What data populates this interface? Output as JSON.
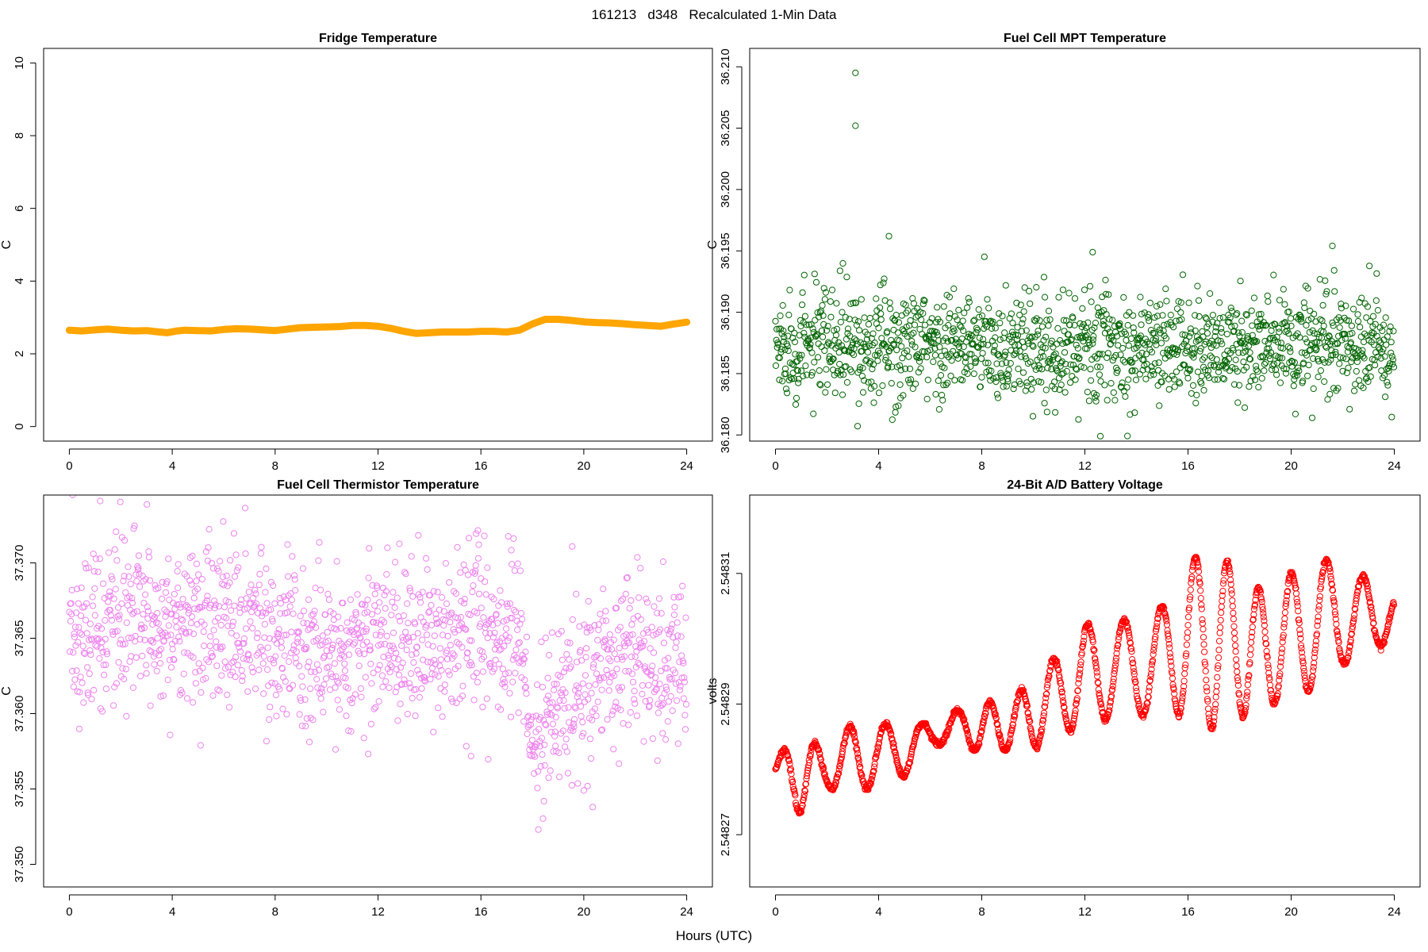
{
  "figure": {
    "title": "161213   d348   Recalculated 1-Min Data",
    "xlabel": "Hours (UTC)"
  },
  "chart_data": [
    {
      "id": "fridge",
      "type": "line",
      "title": "Fridge Temperature",
      "xlabel": "Hours (UTC)",
      "ylabel": "C",
      "color": "#FFA500",
      "xlim": [
        -1,
        25
      ],
      "ylim": [
        -0.4,
        10.4
      ],
      "xticks": [
        0,
        4,
        8,
        12,
        16,
        20,
        24
      ],
      "yticks": [
        0,
        2,
        4,
        6,
        8,
        10
      ],
      "ytick_labels": [
        "0",
        "2",
        "4",
        "6",
        "8",
        "10"
      ],
      "series": [
        {
          "name": "Fridge Temperature",
          "x": [
            0,
            0.5,
            1,
            1.5,
            2,
            2.5,
            3,
            3.5,
            3.8,
            4.2,
            4.5,
            5,
            5.5,
            6,
            6.5,
            7,
            7.5,
            8,
            8.5,
            9,
            9.5,
            10,
            10.5,
            11,
            11.5,
            12,
            12.5,
            13,
            13.5,
            14,
            14.5,
            15,
            15.5,
            16,
            16.5,
            17,
            17.5,
            18,
            18.5,
            19,
            19.5,
            20,
            20.5,
            21,
            21.5,
            22,
            22.5,
            23,
            23.5,
            24
          ],
          "y": [
            2.65,
            2.63,
            2.66,
            2.68,
            2.65,
            2.63,
            2.64,
            2.6,
            2.58,
            2.63,
            2.65,
            2.64,
            2.63,
            2.67,
            2.69,
            2.68,
            2.66,
            2.64,
            2.68,
            2.72,
            2.73,
            2.74,
            2.75,
            2.78,
            2.78,
            2.76,
            2.7,
            2.62,
            2.56,
            2.58,
            2.6,
            2.6,
            2.6,
            2.62,
            2.62,
            2.6,
            2.65,
            2.82,
            2.95,
            2.95,
            2.92,
            2.88,
            2.86,
            2.85,
            2.83,
            2.8,
            2.78,
            2.76,
            2.82,
            2.87
          ]
        }
      ]
    },
    {
      "id": "mpt",
      "type": "scatter",
      "title": "Fuel Cell MPT Temperature",
      "xlabel": "Hours (UTC)",
      "ylabel": "C",
      "color": "#006400",
      "xlim": [
        -1,
        25
      ],
      "ylim": [
        36.1795,
        36.2115
      ],
      "xticks": [
        0,
        4,
        8,
        12,
        16,
        20,
        24
      ],
      "yticks": [
        36.18,
        36.185,
        36.19,
        36.195,
        36.2,
        36.205,
        36.21
      ],
      "ytick_labels": [
        "36.180",
        "36.185",
        "36.190",
        "36.195",
        "36.200",
        "36.205",
        "36.210"
      ],
      "notes": "Approx. 1440 one-minute points scattered around 36.187 C (sd ~0.0025) with spikes to 36.2095 and 36.2052 near hour 3.1",
      "series": [
        {
          "name": "Fuel Cell MPT Temperature",
          "n": 1440,
          "mean": 36.1872,
          "sd": 0.0024,
          "outliers": {
            "x": [
              3.1,
              3.1,
              4.4,
              12.3,
              21.6,
              12.6
            ],
            "y": [
              36.2095,
              36.2052,
              36.1962,
              36.1949,
              36.1954,
              36.1799
            ]
          }
        }
      ]
    },
    {
      "id": "thermistor",
      "type": "scatter",
      "title": "Fuel Cell Thermistor Temperature",
      "xlabel": "Hours (UTC)",
      "ylabel": "C",
      "color": "#EE82EE",
      "xlim": [
        -1,
        25
      ],
      "ylim": [
        37.3485,
        37.3745
      ],
      "xticks": [
        0,
        4,
        8,
        12,
        16,
        20,
        24
      ],
      "yticks": [
        37.35,
        37.355,
        37.36,
        37.365,
        37.37
      ],
      "ytick_labels": [
        "37.350",
        "37.355",
        "37.360",
        "37.365",
        "37.370"
      ],
      "notes": "Approx. 1440 points, mean ~37.365 until hour 17.5, then dipping to ~37.357 near hour 18 and recovering to ~37.364",
      "series": [
        {
          "name": "Fuel Cell Thermistor Temperature",
          "n": 1440,
          "trend_x": [
            0,
            2,
            4,
            6,
            8,
            10,
            12,
            14,
            16,
            17.5,
            18,
            19,
            20,
            22,
            24
          ],
          "trend_y": [
            37.365,
            37.366,
            37.366,
            37.366,
            37.365,
            37.364,
            37.365,
            37.365,
            37.365,
            37.365,
            37.357,
            37.361,
            37.362,
            37.364,
            37.363
          ],
          "sd": 0.0027
        }
      ]
    },
    {
      "id": "battery",
      "type": "scatter",
      "title": "24-Bit A/D Battery Voltage",
      "xlabel": "Hours (UTC)",
      "ylabel": "volts",
      "color": "#FF0000",
      "xlim": [
        -1,
        25
      ],
      "ylim": [
        2.548262,
        2.548322
      ],
      "xticks": [
        0,
        4,
        8,
        12,
        16,
        20,
        24
      ],
      "yticks": [
        2.54827,
        2.54829,
        2.54831
      ],
      "ytick_labels": [
        "2.54827",
        "2.54829",
        "2.54831"
      ],
      "notes": "Oscillating voltage, ~1.3 h period, rising trend from ~2.548280 to ~2.548303",
      "series": [
        {
          "name": "24-Bit A/D Battery Voltage",
          "n": 1440,
          "env_x": [
            0,
            1,
            2,
            3,
            4,
            5,
            6,
            7,
            8,
            9,
            10,
            11,
            12,
            13,
            14,
            15,
            16,
            17,
            18,
            19,
            20,
            21,
            22,
            23,
            24
          ],
          "env_mean": [
            2.54828,
            2.548279,
            2.54828,
            2.548282,
            2.548282,
            2.548283,
            2.548285,
            2.548287,
            2.548286,
            2.548287,
            2.548288,
            2.548292,
            2.548294,
            2.548296,
            2.548295,
            2.548297,
            2.5483,
            2.5483,
            2.548299,
            2.548298,
            2.548301,
            2.548302,
            2.548304,
            2.548303,
            2.548304
          ],
          "env_amp": [
            2e-06,
            6e-06,
            3e-06,
            5e-06,
            5e-06,
            4e-06,
            2e-06,
            2e-06,
            4e-06,
            4e-06,
            5e-06,
            6e-06,
            8e-06,
            8e-06,
            7e-06,
            8e-06,
            1.2e-05,
            1.4e-05,
            1.1e-05,
            9e-06,
            9e-06,
            1e-05,
            8e-06,
            6e-06,
            3e-06
          ]
        }
      ]
    }
  ]
}
